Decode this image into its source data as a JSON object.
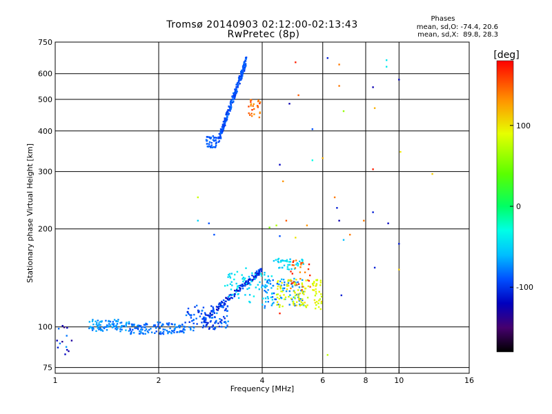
{
  "chart_data": {
    "type": "scatter",
    "title": "Tromsø 20140903 02:12:00-02:13:43",
    "subtitle": "RwPretec (8p)",
    "xlabel": "Frequency [MHz]",
    "ylabel": "Stationary phase Virtual Height [km]",
    "x_scale": "log",
    "y_scale": "log",
    "xlim": [
      1,
      16
    ],
    "ylim": [
      72,
      750
    ],
    "x_ticks": [
      1,
      2,
      4,
      6,
      8,
      10,
      16
    ],
    "y_ticks": [
      75,
      100,
      200,
      300,
      400,
      500,
      600,
      750
    ],
    "grid": true,
    "colorbar": {
      "label": "[deg]",
      "range": [
        -180,
        180
      ],
      "ticks": [
        100,
        0,
        -100
      ]
    },
    "phase_info": {
      "heading": "Phases",
      "line_o": "mean, sd,O: -74.4, 20.6",
      "line_x": "mean, sd,X:  89.8, 28.3"
    },
    "traces": [
      {
        "x_range": [
          1.0,
          1.12
        ],
        "y_range": [
          80,
          103
        ],
        "n": 14,
        "phase": [
          -150,
          -70
        ]
      },
      {
        "x_range": [
          1.25,
          1.65
        ],
        "y_range": [
          97,
          105
        ],
        "n": 90,
        "phase": [
          -85,
          -60
        ]
      },
      {
        "x_range": [
          1.65,
          2.4
        ],
        "y_range": [
          95,
          103
        ],
        "n": 120,
        "phase": [
          -95,
          -70
        ]
      },
      {
        "x_range": [
          2.4,
          3.2
        ],
        "y_range": [
          98,
          116
        ],
        "n": 110,
        "phase": [
          -110,
          -70
        ]
      },
      {
        "x_range": [
          2.7,
          4.0
        ],
        "y_range": [
          105,
          150
        ],
        "n": 160,
        "phase": [
          -125,
          -80
        ]
      },
      {
        "x_range": [
          3.1,
          4.3
        ],
        "y_range": [
          120,
          150
        ],
        "n": 70,
        "phase": [
          -60,
          -35
        ]
      },
      {
        "x_range": [
          4.0,
          5.3
        ],
        "y_range": [
          115,
          140
        ],
        "n": 90,
        "phase": [
          -90,
          -55
        ]
      },
      {
        "x_range": [
          4.4,
          6.0
        ],
        "y_range": [
          113,
          140
        ],
        "n": 110,
        "phase": [
          75,
          105
        ]
      },
      {
        "x_range": [
          4.3,
          5.3
        ],
        "y_range": [
          150,
          162
        ],
        "n": 40,
        "phase": [
          -60,
          -35
        ]
      },
      {
        "x_range": [
          4.8,
          5.6
        ],
        "y_range": [
          130,
          160
        ],
        "n": 30,
        "phase": [
          130,
          175
        ]
      },
      {
        "x_range": [
          2.75,
          3.0
        ],
        "y_range": [
          355,
          385
        ],
        "n": 45,
        "phase": [
          -95,
          -80
        ]
      },
      {
        "x_range": [
          3.0,
          3.6
        ],
        "y_range": [
          380,
          660
        ],
        "n": 220,
        "phase": [
          -100,
          -80
        ]
      },
      {
        "x_range": [
          3.65,
          4.0
        ],
        "y_range": [
          440,
          500
        ],
        "n": 25,
        "phase": [
          130,
          165
        ]
      }
    ],
    "scatter_points": [
      {
        "x": 5.0,
        "y": 650,
        "phase": 170
      },
      {
        "x": 6.2,
        "y": 670,
        "phase": -110
      },
      {
        "x": 6.7,
        "y": 640,
        "phase": 140
      },
      {
        "x": 9.2,
        "y": 660,
        "phase": -40
      },
      {
        "x": 9.2,
        "y": 630,
        "phase": -40
      },
      {
        "x": 10.0,
        "y": 575,
        "phase": -120
      },
      {
        "x": 8.4,
        "y": 545,
        "phase": -125
      },
      {
        "x": 6.7,
        "y": 550,
        "phase": 140
      },
      {
        "x": 5.1,
        "y": 515,
        "phase": 150
      },
      {
        "x": 4.8,
        "y": 485,
        "phase": -125
      },
      {
        "x": 6.9,
        "y": 460,
        "phase": 60
      },
      {
        "x": 8.5,
        "y": 470,
        "phase": 120
      },
      {
        "x": 5.6,
        "y": 405,
        "phase": -90
      },
      {
        "x": 4.5,
        "y": 315,
        "phase": -120
      },
      {
        "x": 5.6,
        "y": 325,
        "phase": -30
      },
      {
        "x": 6.0,
        "y": 330,
        "phase": 120
      },
      {
        "x": 8.4,
        "y": 305,
        "phase": 170
      },
      {
        "x": 10.1,
        "y": 345,
        "phase": 100
      },
      {
        "x": 12.5,
        "y": 295,
        "phase": 110
      },
      {
        "x": 4.6,
        "y": 280,
        "phase": 130
      },
      {
        "x": 2.6,
        "y": 250,
        "phase": 80
      },
      {
        "x": 6.5,
        "y": 250,
        "phase": 140
      },
      {
        "x": 6.6,
        "y": 232,
        "phase": -110
      },
      {
        "x": 8.4,
        "y": 225,
        "phase": -110
      },
      {
        "x": 2.6,
        "y": 212,
        "phase": -50
      },
      {
        "x": 2.8,
        "y": 208,
        "phase": -90
      },
      {
        "x": 4.4,
        "y": 205,
        "phase": 70
      },
      {
        "x": 4.2,
        "y": 202,
        "phase": 50
      },
      {
        "x": 4.7,
        "y": 212,
        "phase": 150
      },
      {
        "x": 5.4,
        "y": 205,
        "phase": 130
      },
      {
        "x": 6.7,
        "y": 212,
        "phase": -125
      },
      {
        "x": 7.9,
        "y": 212,
        "phase": 140
      },
      {
        "x": 9.3,
        "y": 208,
        "phase": -120
      },
      {
        "x": 2.9,
        "y": 192,
        "phase": -90
      },
      {
        "x": 4.5,
        "y": 190,
        "phase": -90
      },
      {
        "x": 5.0,
        "y": 188,
        "phase": 100
      },
      {
        "x": 6.9,
        "y": 185,
        "phase": -60
      },
      {
        "x": 7.2,
        "y": 192,
        "phase": 140
      },
      {
        "x": 10.0,
        "y": 180,
        "phase": -110
      },
      {
        "x": 8.5,
        "y": 152,
        "phase": -110
      },
      {
        "x": 10.0,
        "y": 150,
        "phase": 110
      },
      {
        "x": 6.8,
        "y": 125,
        "phase": -110
      },
      {
        "x": 4.5,
        "y": 110,
        "phase": 170
      },
      {
        "x": 6.2,
        "y": 82,
        "phase": 75
      }
    ]
  }
}
